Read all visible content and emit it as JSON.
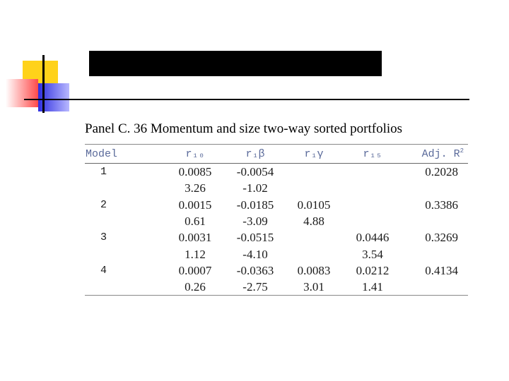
{
  "slide": {
    "title": "",
    "panel_title": "Panel C. 36 Momentum and size two-way sorted portfolios"
  },
  "table": {
    "headers": {
      "model": "Model",
      "r10": "r₁₀",
      "r1b": "r₁β",
      "r1y": "r₁γ",
      "r15": "r₁₅",
      "adj": "Adj. R",
      "adj_sup": "2"
    },
    "rows": [
      {
        "model": "1",
        "r10": "0.0085",
        "r1b": "-0.0054",
        "r1y": "",
        "r15": "",
        "adj": "0.2028"
      },
      {
        "model": "",
        "r10": "3.26",
        "r1b": "-1.02",
        "r1y": "",
        "r15": "",
        "adj": ""
      },
      {
        "model": "2",
        "r10": "0.0015",
        "r1b": "-0.0185",
        "r1y": "0.0105",
        "r15": "",
        "adj": "0.3386"
      },
      {
        "model": "",
        "r10": "0.61",
        "r1b": "-3.09",
        "r1y": "4.88",
        "r15": "",
        "adj": ""
      },
      {
        "model": "3",
        "r10": "0.0031",
        "r1b": "-0.0515",
        "r1y": "",
        "r15": "0.0446",
        "adj": "0.3269"
      },
      {
        "model": "",
        "r10": "1.12",
        "r1b": "-4.10",
        "r1y": "",
        "r15": "3.54",
        "adj": ""
      },
      {
        "model": "4",
        "r10": "0.0007",
        "r1b": "-0.0363",
        "r1y": "0.0083",
        "r15": "0.0212",
        "adj": "0.4134"
      },
      {
        "model": "",
        "r10": "0.26",
        "r1b": "-2.75",
        "r1y": "3.01",
        "r15": "1.41",
        "adj": ""
      }
    ]
  },
  "colors": {
    "header_text": "#5a6a9a",
    "deco_yellow": "#ffd21a",
    "deco_red": "#ff4a4a",
    "deco_blue": "#2e2ee0"
  }
}
